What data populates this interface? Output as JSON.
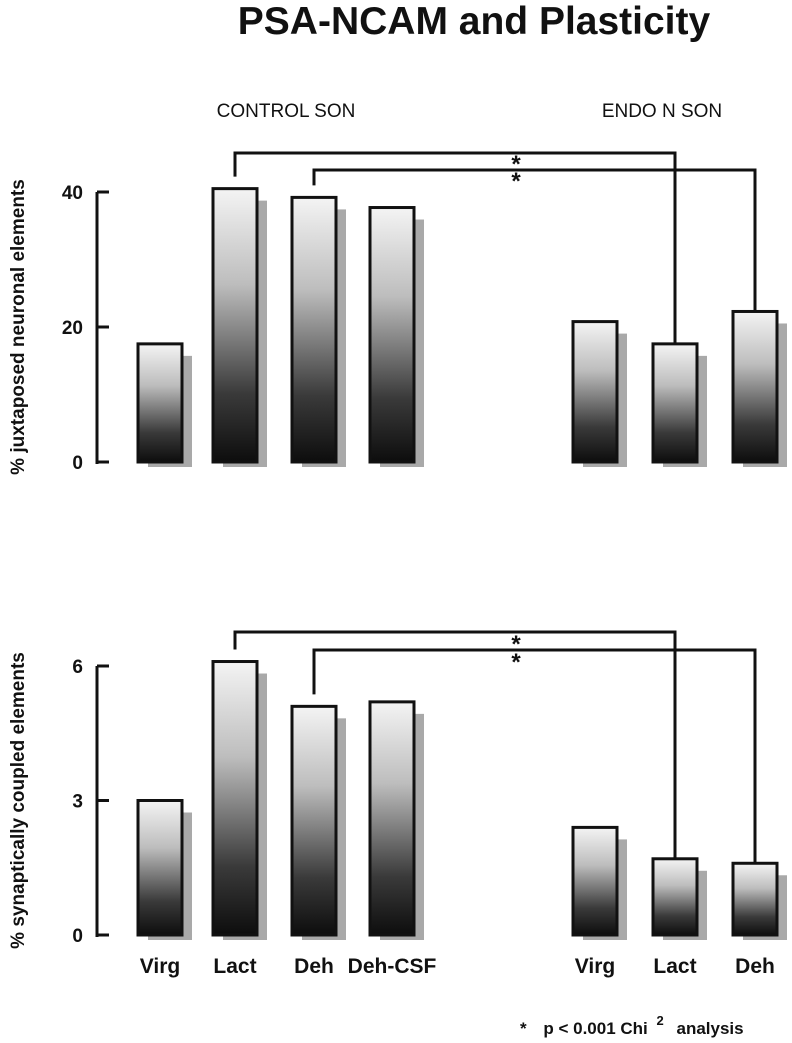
{
  "figure": {
    "title": "PSA-NCAM and Plasticity",
    "group_labels": [
      "CONTROL SON",
      "ENDO N SON"
    ],
    "footnote": {
      "marker": "*",
      "text": "p < 0.001 Chi",
      "superscript": "2",
      "suffix": "analysis"
    }
  },
  "chart_data": [
    {
      "type": "bar",
      "ylabel": "% juxtaposed neuronal elements",
      "ylim": [
        0,
        40
      ],
      "yticks": [
        0,
        20,
        40
      ],
      "categories": [
        "Virg",
        "Lact",
        "Deh",
        "Deh-CSF",
        "Virg",
        "Lact",
        "Deh"
      ],
      "groups": [
        "CONTROL SON",
        "CONTROL SON",
        "CONTROL SON",
        "CONTROL SON",
        "ENDO N SON",
        "ENDO N SON",
        "ENDO N SON"
      ],
      "values": [
        17.5,
        40.5,
        39.2,
        37.7,
        20.8,
        17.5,
        22.3
      ],
      "significance": [
        {
          "from": "Lact",
          "to": "Lact",
          "label": "*"
        },
        {
          "from": "Deh",
          "to": "Deh",
          "label": "*"
        }
      ],
      "show_category_labels": false
    },
    {
      "type": "bar",
      "ylabel": "% synaptically coupled elements",
      "ylim": [
        0,
        6
      ],
      "yticks": [
        0,
        3,
        6
      ],
      "categories": [
        "Virg",
        "Lact",
        "Deh",
        "Deh-CSF",
        "Virg",
        "Lact",
        "Deh"
      ],
      "groups": [
        "CONTROL SON",
        "CONTROL SON",
        "CONTROL SON",
        "CONTROL SON",
        "ENDO N SON",
        "ENDO N SON",
        "ENDO N SON"
      ],
      "values": [
        3.0,
        6.1,
        5.1,
        5.2,
        2.4,
        1.7,
        1.6
      ],
      "significance": [
        {
          "from": "Lact",
          "to": "Lact",
          "label": "*"
        },
        {
          "from": "Deh",
          "to": "Deh",
          "label": "*"
        }
      ],
      "show_category_labels": true
    }
  ]
}
